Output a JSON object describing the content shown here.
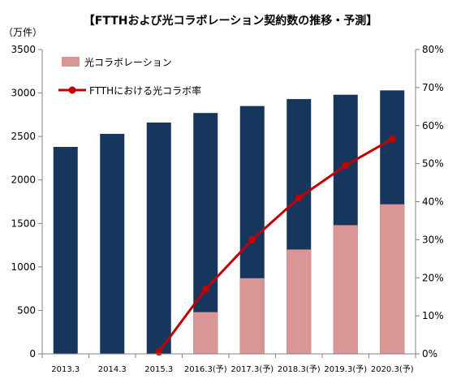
{
  "chart_data": {
    "type": "bar",
    "title": "【FTTHおよび光コラボレーション契約数の推移・予測】",
    "ylabel_left": "（万件）",
    "categories": [
      "2013.3",
      "2014.3",
      "2015.3",
      "2016.3(予)",
      "2017.3(予)",
      "2018.3(予)",
      "2019.3(予)",
      "2020.3(予)"
    ],
    "ftth_total": [
      2380,
      2530,
      2660,
      2770,
      2850,
      2930,
      2980,
      3030
    ],
    "series": [
      {
        "name": "光コラボレーション",
        "type": "bar",
        "axis": "left",
        "color": "#d99694",
        "values": [
          0,
          0,
          0,
          480,
          870,
          1200,
          1480,
          1720
        ]
      },
      {
        "name": "FTTHにおける光コラボ率",
        "type": "line",
        "axis": "right",
        "color": "#c00000",
        "values": [
          null,
          null,
          0.5,
          17,
          30,
          41,
          49.5,
          56.5
        ]
      }
    ],
    "total_bar_color": "#17365d",
    "ylim_left": [
      0,
      3500
    ],
    "yticks_left": [
      "0",
      "500",
      "1000",
      "1500",
      "2000",
      "2500",
      "3000",
      "3500"
    ],
    "ylim_right": [
      0,
      80
    ],
    "yticks_right": [
      "0%",
      "10%",
      "20%",
      "30%",
      "40%",
      "50%",
      "60%",
      "70%",
      "80%"
    ],
    "legend_placement": "top-left",
    "grid": false
  }
}
